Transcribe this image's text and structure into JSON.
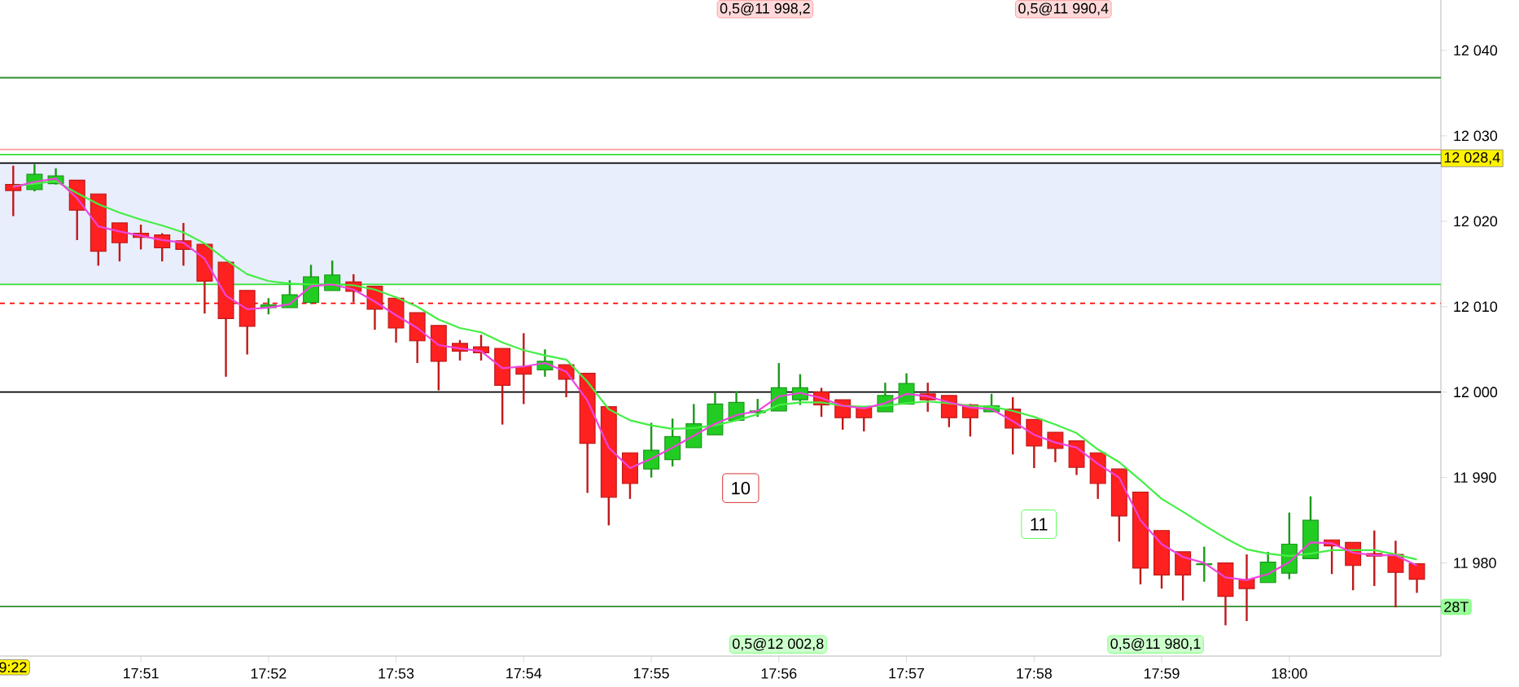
{
  "chart_data": {
    "type": "candlestick",
    "x": [
      17.83333,
      17.83611,
      17.83889,
      17.84167,
      17.84444,
      17.84722,
      17.85,
      17.85278,
      17.85556,
      17.85833,
      17.86111,
      17.86389,
      17.86667,
      17.86944,
      17.87222,
      17.875,
      17.87778,
      17.88056,
      17.88333,
      17.88611,
      17.88889,
      17.89167,
      17.89444,
      17.89722,
      17.9,
      17.90278,
      17.90556,
      17.90833,
      17.91111,
      17.91389,
      17.91667,
      17.91944,
      17.92222,
      17.925,
      17.92778,
      17.93056,
      17.93333,
      17.93611,
      17.93889,
      17.94167,
      17.94444,
      17.94722,
      17.95,
      17.95278,
      17.95556,
      17.95833,
      17.96111,
      17.96389,
      17.96667,
      17.96944,
      17.97222,
      17.975,
      17.97778,
      17.98056,
      17.98333,
      17.98611,
      17.98889,
      17.99167,
      17.99444,
      17.99722,
      18.0,
      18.00278,
      18.00556,
      18.00833,
      18.01111,
      18.01389,
      18.01667
    ],
    "ohlc": [
      [
        12024.3,
        12026.5,
        12020.6,
        12023.6
      ],
      [
        12023.7,
        12026.7,
        12023.5,
        12025.5
      ],
      [
        12024.4,
        12026.2,
        12024.3,
        12025.3
      ],
      [
        12024.8,
        12024.8,
        12017.8,
        12021.3
      ],
      [
        12023.2,
        12023.2,
        12014.8,
        12016.5
      ],
      [
        12019.8,
        12019.8,
        12015.3,
        12017.5
      ],
      [
        12018.6,
        12019.6,
        12016.7,
        12018.1
      ],
      [
        12018.4,
        12018.6,
        12015.3,
        12016.9
      ],
      [
        12017.7,
        12019.8,
        12014.8,
        12016.7
      ],
      [
        12017.3,
        12017.3,
        12009.2,
        12013.0
      ],
      [
        12015.2,
        12015.2,
        12001.8,
        12008.6
      ],
      [
        12011.9,
        12011.9,
        12004.4,
        12007.7
      ],
      [
        12009.9,
        12011.0,
        12009.1,
        12010.2
      ],
      [
        12009.9,
        12013.1,
        12009.9,
        12011.4
      ],
      [
        12010.5,
        12014.9,
        12010.3,
        12013.5
      ],
      [
        12011.9,
        12015.4,
        12011.9,
        12013.7
      ],
      [
        12012.9,
        12013.8,
        12010.5,
        12011.8
      ],
      [
        12012.4,
        12012.4,
        12007.3,
        12009.7
      ],
      [
        12011.0,
        12011.0,
        12005.8,
        12007.5
      ],
      [
        12009.3,
        12009.3,
        12003.4,
        12006.0
      ],
      [
        12007.8,
        12007.8,
        12000.2,
        12003.6
      ],
      [
        12005.7,
        12006.1,
        12003.7,
        12004.8
      ],
      [
        12005.3,
        12006.7,
        12003.7,
        12004.6
      ],
      [
        12005.1,
        12005.1,
        11996.2,
        12000.8
      ],
      [
        12003.0,
        12006.9,
        11998.6,
        12002.1
      ],
      [
        12002.6,
        12005.0,
        12001.8,
        12003.6
      ],
      [
        12003.2,
        12003.2,
        11999.4,
        12001.5
      ],
      [
        12002.2,
        12002.2,
        11988.2,
        11994.0
      ],
      [
        11998.3,
        11998.3,
        11984.4,
        11987.7
      ],
      [
        11992.9,
        11992.9,
        11987.5,
        11989.3
      ],
      [
        11991.0,
        11996.4,
        11990.0,
        11993.2
      ],
      [
        11992.1,
        11996.9,
        11991.3,
        11994.8
      ],
      [
        11993.5,
        11998.6,
        11993.5,
        11996.3
      ],
      [
        11995.0,
        11999.9,
        11995.0,
        11998.6
      ],
      [
        11996.7,
        12000.1,
        11996.7,
        11998.8
      ],
      [
        11997.6,
        11999.2,
        11997.1,
        11997.8
      ],
      [
        11997.8,
        12003.4,
        11997.8,
        12000.5
      ],
      [
        11999.1,
        12002.1,
        11998.5,
        12000.5
      ],
      [
        12000.0,
        12000.5,
        11997.1,
        11998.5
      ],
      [
        11999.1,
        11999.1,
        11995.6,
        11997.0
      ],
      [
        11998.3,
        11998.3,
        11995.4,
        11997.0
      ],
      [
        11997.7,
        12001.1,
        11997.7,
        11999.6
      ],
      [
        11998.6,
        12002.2,
        11998.6,
        12001.0
      ],
      [
        11999.8,
        12001.1,
        11997.7,
        11999.1
      ],
      [
        11999.6,
        11999.6,
        11995.9,
        11997.0
      ],
      [
        11998.5,
        11998.6,
        11994.8,
        11997.0
      ],
      [
        11997.7,
        11999.8,
        11997.7,
        11998.4
      ],
      [
        11998.0,
        11999.4,
        11992.7,
        11995.8
      ],
      [
        11996.8,
        11996.8,
        11991.1,
        11993.7
      ],
      [
        11995.3,
        11995.3,
        11991.8,
        11993.4
      ],
      [
        11994.3,
        11994.3,
        11990.3,
        11991.2
      ],
      [
        11992.9,
        11992.9,
        11987.5,
        11989.3
      ],
      [
        11991.0,
        11991.0,
        11982.5,
        11985.5
      ],
      [
        11988.3,
        11988.3,
        11977.5,
        11979.4
      ],
      [
        11983.8,
        11983.8,
        11977.0,
        11978.6
      ],
      [
        11981.3,
        11981.3,
        11975.6,
        11978.6
      ],
      [
        11979.8,
        11981.9,
        11977.8,
        11979.9
      ],
      [
        11980.0,
        11980.0,
        11972.7,
        11976.1
      ],
      [
        11978.1,
        11981.0,
        11973.2,
        11977.0
      ],
      [
        11977.7,
        11981.3,
        11977.7,
        11980.1
      ],
      [
        11978.8,
        11985.9,
        11978.1,
        11982.2
      ],
      [
        11980.5,
        11987.8,
        11980.5,
        11985.0
      ],
      [
        11982.7,
        11982.7,
        11978.7,
        11982.0
      ],
      [
        11982.4,
        11982.4,
        11976.8,
        11979.7
      ],
      [
        11981.1,
        11983.8,
        11977.3,
        11980.8
      ],
      [
        11981.0,
        11982.6,
        11974.8,
        11978.9
      ],
      [
        11979.9,
        11979.9,
        11976.5,
        11978.1
      ]
    ],
    "colors": [
      "#ff2020",
      "#22cc22",
      "#22cc22",
      "#ff2020",
      "#ff2020",
      "#ff2020",
      "#ff2020",
      "#ff2020",
      "#ff2020",
      "#ff2020",
      "#ff2020",
      "#ff2020",
      "#22cc22",
      "#22cc22",
      "#22cc22",
      "#22cc22",
      "#ff2020",
      "#ff2020",
      "#ff2020",
      "#ff2020",
      "#ff2020",
      "#ff2020",
      "#ff2020",
      "#ff2020",
      "#ff2020",
      "#22cc22",
      "#ff2020",
      "#ff2020",
      "#ff2020",
      "#ff2020",
      "#22cc22",
      "#22cc22",
      "#22cc22",
      "#22cc22",
      "#22cc22",
      "#22cc22",
      "#22cc22",
      "#22cc22",
      "#ff2020",
      "#ff2020",
      "#ff2020",
      "#22cc22",
      "#22cc22",
      "#ff2020",
      "#ff2020",
      "#ff2020",
      "#22cc22",
      "#ff2020",
      "#ff2020",
      "#ff2020",
      "#ff2020",
      "#ff2020",
      "#ff2020",
      "#ff2020",
      "#ff2020",
      "#ff2020",
      "#22cc22",
      "#ff2020",
      "#ff2020",
      "#22cc22",
      "#22cc22",
      "#22cc22",
      "#ff2020",
      "#ff2020",
      "#ff2020",
      "#ff2020",
      "#ff2020"
    ],
    "series": [
      {
        "type": "line",
        "color": "#44ee44",
        "values": [
          12024.1,
          12024.4,
          12024.7,
          12023.3,
          12022.0,
          12021.0,
          12020.2,
          12019.5,
          12018.7,
          12017.4,
          12015.5,
          12013.8,
          12013.0,
          12012.7,
          12012.6,
          12012.6,
          12012.5,
          12012.0,
          12011.1,
          12010.0,
          12008.5,
          12007.5,
          12007.0,
          12005.8,
          12004.9,
          12004.3,
          12003.8,
          12001.2,
          11998.0,
          11996.7,
          11996.1,
          11995.7,
          11995.8,
          11996.1,
          11996.7,
          11997.4,
          11998.5,
          11998.8,
          11998.8,
          11998.4,
          11998.3,
          11998.4,
          11998.7,
          11998.9,
          11998.7,
          11998.4,
          11998.3,
          11997.8,
          11997.1,
          11996.2,
          11995.2,
          11993.3,
          11991.8,
          11989.7,
          11987.5,
          11986.0,
          11984.4,
          11982.9,
          11981.6,
          11981.1,
          11980.8,
          11981.1,
          11981.5,
          11981.5,
          11981.5,
          11981.0,
          11980.4
        ]
      },
      {
        "type": "line",
        "color": "#ee44dd",
        "values": [
          12024.0,
          12024.6,
          12025.0,
          12022.7,
          12019.4,
          12018.8,
          12018.3,
          12017.8,
          12017.5,
          12015.6,
          12011.3,
          12009.7,
          12009.9,
          12010.3,
          12012.4,
          12012.6,
          12012.0,
          12010.6,
          12009.0,
          12007.5,
          12005.5,
          12005.1,
          12004.8,
          12002.8,
          12003.0,
          12003.4,
          12002.4,
          11999.0,
          11993.5,
          11991.1,
          11992.2,
          11993.5,
          11994.9,
          11996.3,
          11997.3,
          11997.8,
          11999.5,
          11999.9,
          11999.3,
          11998.4,
          11998.1,
          11998.7,
          11999.8,
          11999.5,
          11998.8,
          11998.2,
          11998.0,
          11996.6,
          11995.0,
          11994.1,
          11993.5,
          11991.6,
          11990.0,
          11985.0,
          11982.2,
          11980.7,
          11980.0,
          11978.3,
          11978.0,
          11978.7,
          11980.1,
          11982.4,
          11982.3,
          11981.2,
          11980.9,
          11980.9,
          11979.7
        ]
      }
    ],
    "xlim": [
      17.8316,
      18.0198
    ],
    "ylim": [
      11969.1,
      12045.9
    ],
    "xticks": [
      {
        "value": 17.85,
        "label": "17:51"
      },
      {
        "value": 17.86667,
        "label": "17:52"
      },
      {
        "value": 17.88333,
        "label": "17:53"
      },
      {
        "value": 17.9,
        "label": "17:54"
      },
      {
        "value": 17.91667,
        "label": "17:55"
      },
      {
        "value": 17.93333,
        "label": "17:56"
      },
      {
        "value": 17.95,
        "label": "17:57"
      },
      {
        "value": 17.96667,
        "label": "17:58"
      },
      {
        "value": 17.98333,
        "label": "17:59"
      },
      {
        "value": 18.0,
        "label": "18:00"
      }
    ],
    "yticks": [
      {
        "value": 11980,
        "label": "11 980"
      },
      {
        "value": 11990,
        "label": "11 990"
      },
      {
        "value": 12000,
        "label": "12 000"
      },
      {
        "value": 12010,
        "label": "12 010"
      },
      {
        "value": 12020,
        "label": "12 020"
      },
      {
        "value": 12030,
        "label": "12 030"
      },
      {
        "value": 12040,
        "label": "12 040"
      }
    ],
    "bands": [
      {
        "axis": "y",
        "from": 12012.6,
        "to": 12026.8,
        "color": "#e8eefc"
      }
    ],
    "ref_lines": [
      {
        "axis": "y",
        "value": 12036.8,
        "color": "#2e8b2e"
      },
      {
        "axis": "y",
        "value": 12028.4,
        "label": "12 028,4",
        "color": "#ff9999"
      },
      {
        "axis": "y",
        "value": 12027.8,
        "color": "#33dd33"
      },
      {
        "axis": "y",
        "value": 12026.8,
        "color": "#000000"
      },
      {
        "axis": "y",
        "value": 12012.6,
        "color": "#33dd33"
      },
      {
        "axis": "y",
        "value": 12010.4,
        "color": "#ff0000",
        "line_style": "dashed"
      },
      {
        "axis": "y",
        "value": 12000,
        "color": "#000000"
      },
      {
        "axis": "y",
        "value": 11974.9,
        "color": "#2e8b2e"
      }
    ],
    "annotations": [
      "0,5@11 998,2",
      "0,5@11 990,4",
      "0,5@12 002,8",
      "0,5@11 980,1",
      "10",
      "11",
      "9:22",
      "28T"
    ]
  }
}
